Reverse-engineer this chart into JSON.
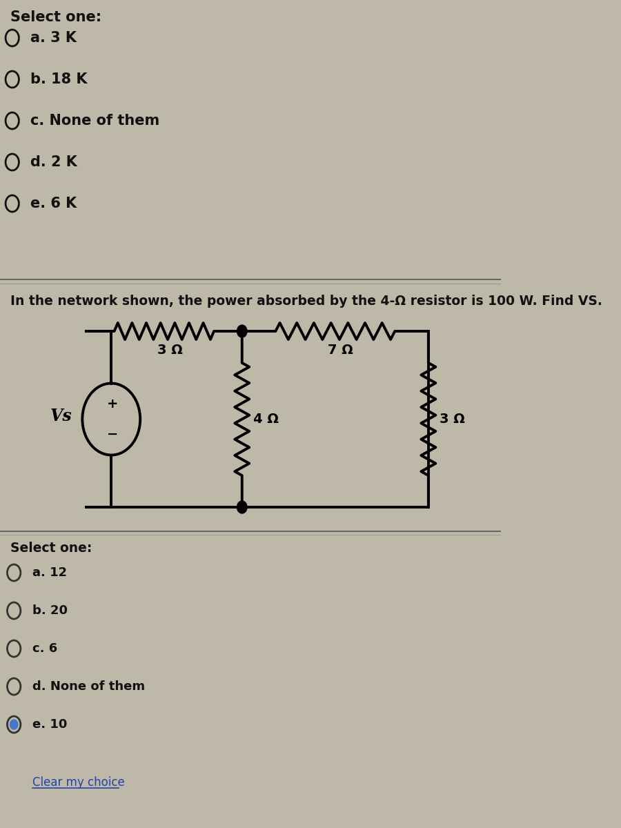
{
  "bg_color": "#bdb8a8",
  "section1_title": "Select one:",
  "section1_options": [
    {
      "label": "a. 3 K",
      "selected": false
    },
    {
      "label": "b. 18 K",
      "selected": false
    },
    {
      "label": "c. None of them",
      "selected": false
    },
    {
      "label": "d. 2 K",
      "selected": false
    },
    {
      "label": "e. 6 K",
      "selected": false
    }
  ],
  "question_text": "In the network shown, the power absorbed by the 4-Ω resistor is 100 W. Find VS.",
  "section2_title": "Select one:",
  "section2_options": [
    {
      "label": "a. 12",
      "selected": false
    },
    {
      "label": "b. 20",
      "selected": false
    },
    {
      "label": "c. 6",
      "selected": false
    },
    {
      "label": "d. None of them",
      "selected": false
    },
    {
      "label": "e. 10",
      "selected": true
    }
  ],
  "clear_label": "Clear my choice",
  "circuit": {
    "vs_label": "Vs",
    "r1_label": "3 Ω",
    "r2_label": "4 Ω",
    "r3_label": "7 Ω",
    "r4_label": "3 Ω"
  }
}
